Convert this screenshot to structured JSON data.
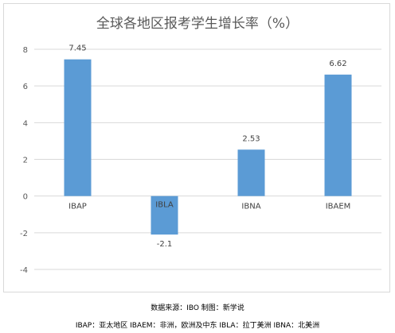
{
  "chart_data": {
    "type": "bar",
    "title": "全球各地区报考学生增长率（%）",
    "categories": [
      "IBAP",
      "IBLA",
      "IBNA",
      "IBAEM"
    ],
    "values": [
      7.45,
      -2.1,
      2.53,
      6.62
    ],
    "data_labels": [
      "7.45",
      "-2.1",
      "2.53",
      "6.62"
    ],
    "ylim": [
      -4,
      8
    ],
    "yticks": [
      8,
      6,
      4,
      2,
      0,
      -2,
      -4
    ],
    "grid": true,
    "bar_color": "#5b9bd5",
    "xlabel": "",
    "ylabel": ""
  },
  "footer": {
    "source": "数据来源：IBO 制图：新学说",
    "legend_note": "IBAP：亚太地区 IBAEM：非洲，欧洲及中东 IBLA：拉丁美洲 IBNA：北美洲"
  }
}
